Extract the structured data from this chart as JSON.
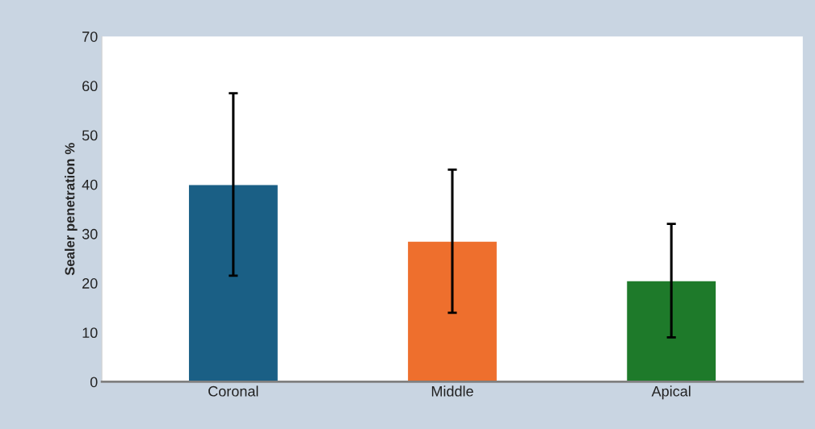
{
  "chart_data": {
    "type": "bar",
    "ylabel": "Sealer penetration %",
    "categories": [
      "Coronal",
      "Middle",
      "Apical"
    ],
    "values": [
      40,
      28.5,
      20.5
    ],
    "errors": [
      18.5,
      14.5,
      11.5
    ],
    "colors": [
      "#1a5f85",
      "#ee6f2d",
      "#1e7a2a"
    ],
    "ylim": [
      0,
      70
    ],
    "yticks": [
      0,
      10,
      20,
      30,
      40,
      50,
      60,
      70
    ],
    "grid": false
  }
}
